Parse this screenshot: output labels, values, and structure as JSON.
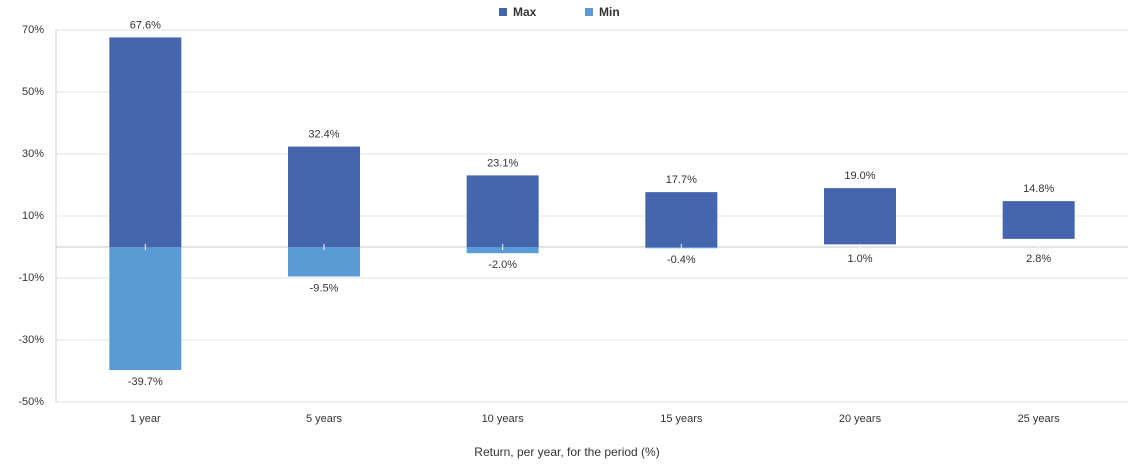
{
  "chart_data": {
    "type": "floating_bar",
    "x_label": "Return, per year, for the period (%)",
    "categories": [
      "1 year",
      "5 years",
      "10 years",
      "15 years",
      "20 years",
      "25 years"
    ],
    "series": [
      {
        "name": "Max",
        "color": "#4565ae",
        "values": [
          67.6,
          32.4,
          23.1,
          17.7,
          19.0,
          14.8
        ],
        "value_labels": [
          "67.6%",
          "32.4%",
          "23.1%",
          "17.7%",
          "19.0%",
          "14.8%"
        ]
      },
      {
        "name": "Min",
        "color": "#5b9bd5",
        "values": [
          -39.7,
          -9.5,
          -2.0,
          -0.4,
          1.0,
          2.8
        ],
        "value_labels": [
          "-39.7%",
          "-9.5%",
          "-2.0%",
          "-0.4%",
          "1.0%",
          "2.8%"
        ]
      }
    ],
    "ylim": [
      -50,
      70
    ],
    "yticks": [
      {
        "value": -50,
        "label": "-50%"
      },
      {
        "value": -30,
        "label": "-30%"
      },
      {
        "value": -10,
        "label": "-10%"
      },
      {
        "value": 10,
        "label": "10%"
      },
      {
        "value": 30,
        "label": "30%"
      },
      {
        "value": 50,
        "label": "50%"
      },
      {
        "value": 70,
        "label": "70%"
      }
    ],
    "grid": true,
    "legend": "top"
  }
}
